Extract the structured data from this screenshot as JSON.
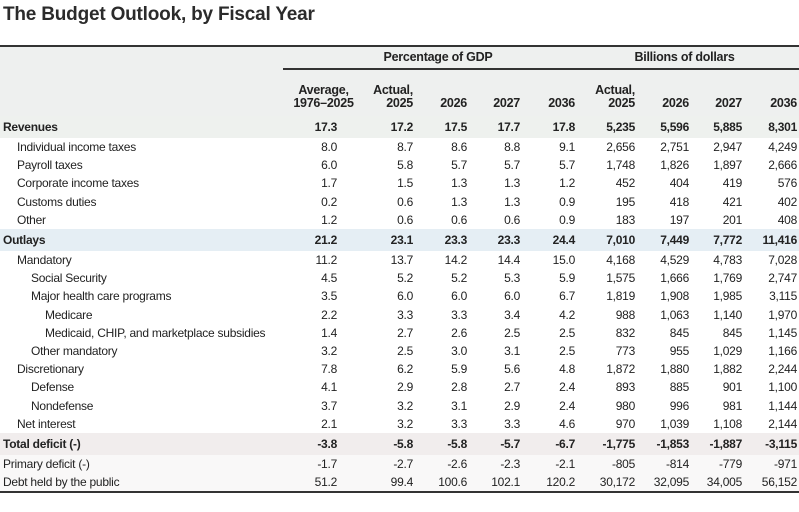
{
  "title": "The Budget Outlook, by Fiscal Year",
  "groups": {
    "pct": "Percentage of GDP",
    "bil": "Billions of dollars"
  },
  "columns": [
    [
      "Average,",
      "1976–2025"
    ],
    [
      "Actual,",
      "2025"
    ],
    [
      "",
      "2026"
    ],
    [
      "",
      "2027"
    ],
    [
      "",
      "2036"
    ],
    [
      "Actual,",
      "2025"
    ],
    [
      "",
      "2026"
    ],
    [
      "",
      "2027"
    ],
    [
      "",
      "2036"
    ]
  ],
  "colors": {
    "header_bg": "#eef0ef",
    "revenues_bg": "#eef1ee",
    "outlays_bg": "#e5eef4",
    "deficit_bg": "#f1eded",
    "rule": "#333333"
  },
  "rows": [
    {
      "label": "Revenues",
      "indent": 0,
      "bold": true,
      "bg": "rev",
      "values": [
        "17.3",
        "17.2",
        "17.5",
        "17.7",
        "17.8",
        "5,235",
        "5,596",
        "5,885",
        "8,301"
      ]
    },
    {
      "label": "Individual income taxes",
      "indent": 1,
      "values": [
        "8.0",
        "8.7",
        "8.6",
        "8.8",
        "9.1",
        "2,656",
        "2,751",
        "2,947",
        "4,249"
      ]
    },
    {
      "label": "Payroll taxes",
      "indent": 1,
      "values": [
        "6.0",
        "5.8",
        "5.7",
        "5.7",
        "5.7",
        "1,748",
        "1,826",
        "1,897",
        "2,666"
      ]
    },
    {
      "label": "Corporate income taxes",
      "indent": 1,
      "values": [
        "1.7",
        "1.5",
        "1.3",
        "1.3",
        "1.2",
        "452",
        "404",
        "419",
        "576"
      ]
    },
    {
      "label": "Customs duties",
      "indent": 1,
      "values": [
        "0.2",
        "0.6",
        "1.3",
        "1.3",
        "0.9",
        "195",
        "418",
        "421",
        "402"
      ]
    },
    {
      "label": "Other",
      "indent": 1,
      "values": [
        "1.2",
        "0.6",
        "0.6",
        "0.6",
        "0.9",
        "183",
        "197",
        "201",
        "408"
      ]
    },
    {
      "label": "Outlays",
      "indent": 0,
      "bold": true,
      "bg": "out",
      "values": [
        "21.2",
        "23.1",
        "23.3",
        "23.3",
        "24.4",
        "7,010",
        "7,449",
        "7,772",
        "11,416"
      ]
    },
    {
      "label": "Mandatory",
      "indent": 1,
      "values": [
        "11.2",
        "13.7",
        "14.2",
        "14.4",
        "15.0",
        "4,168",
        "4,529",
        "4,783",
        "7,028"
      ]
    },
    {
      "label": "Social Security",
      "indent": 2,
      "values": [
        "4.5",
        "5.2",
        "5.2",
        "5.3",
        "5.9",
        "1,575",
        "1,666",
        "1,769",
        "2,747"
      ]
    },
    {
      "label": "Major health care programs",
      "indent": 2,
      "values": [
        "3.5",
        "6.0",
        "6.0",
        "6.0",
        "6.7",
        "1,819",
        "1,908",
        "1,985",
        "3,115"
      ]
    },
    {
      "label": "Medicare",
      "indent": 3,
      "values": [
        "2.2",
        "3.3",
        "3.3",
        "3.4",
        "4.2",
        "988",
        "1,063",
        "1,140",
        "1,970"
      ]
    },
    {
      "label": "Medicaid, CHIP, and marketplace subsidies",
      "indent": 3,
      "values": [
        "1.4",
        "2.7",
        "2.6",
        "2.5",
        "2.5",
        "832",
        "845",
        "845",
        "1,145"
      ]
    },
    {
      "label": "Other mandatory",
      "indent": 2,
      "values": [
        "3.2",
        "2.5",
        "3.0",
        "3.1",
        "2.5",
        "773",
        "955",
        "1,029",
        "1,166"
      ]
    },
    {
      "label": "Discretionary",
      "indent": 1,
      "values": [
        "7.8",
        "6.2",
        "5.9",
        "5.6",
        "4.8",
        "1,872",
        "1,880",
        "1,882",
        "2,244"
      ]
    },
    {
      "label": "Defense",
      "indent": 2,
      "values": [
        "4.1",
        "2.9",
        "2.8",
        "2.7",
        "2.4",
        "893",
        "885",
        "901",
        "1,100"
      ]
    },
    {
      "label": "Nondefense",
      "indent": 2,
      "values": [
        "3.7",
        "3.2",
        "3.1",
        "2.9",
        "2.4",
        "980",
        "996",
        "981",
        "1,144"
      ]
    },
    {
      "label": "Net interest",
      "indent": 1,
      "values": [
        "2.1",
        "3.2",
        "3.3",
        "3.3",
        "4.6",
        "970",
        "1,039",
        "1,108",
        "2,144"
      ]
    },
    {
      "label": "Total deficit (-)",
      "indent": 0,
      "bold": true,
      "bg": "def",
      "values": [
        "-3.8",
        "-5.8",
        "-5.8",
        "-5.7",
        "-6.7",
        "-1,775",
        "-1,853",
        "-1,887",
        "-3,115"
      ]
    },
    {
      "label": "Primary deficit (-)",
      "indent": 0,
      "bg": "foot",
      "values": [
        "-1.7",
        "-2.7",
        "-2.6",
        "-2.3",
        "-2.1",
        "-805",
        "-814",
        "-779",
        "-971"
      ]
    },
    {
      "label": "Debt held by the public",
      "indent": 0,
      "bg": "foot",
      "last": true,
      "values": [
        "51.2",
        "99.4",
        "100.6",
        "102.1",
        "120.2",
        "30,172",
        "32,095",
        "34,005",
        "56,152"
      ]
    }
  ]
}
